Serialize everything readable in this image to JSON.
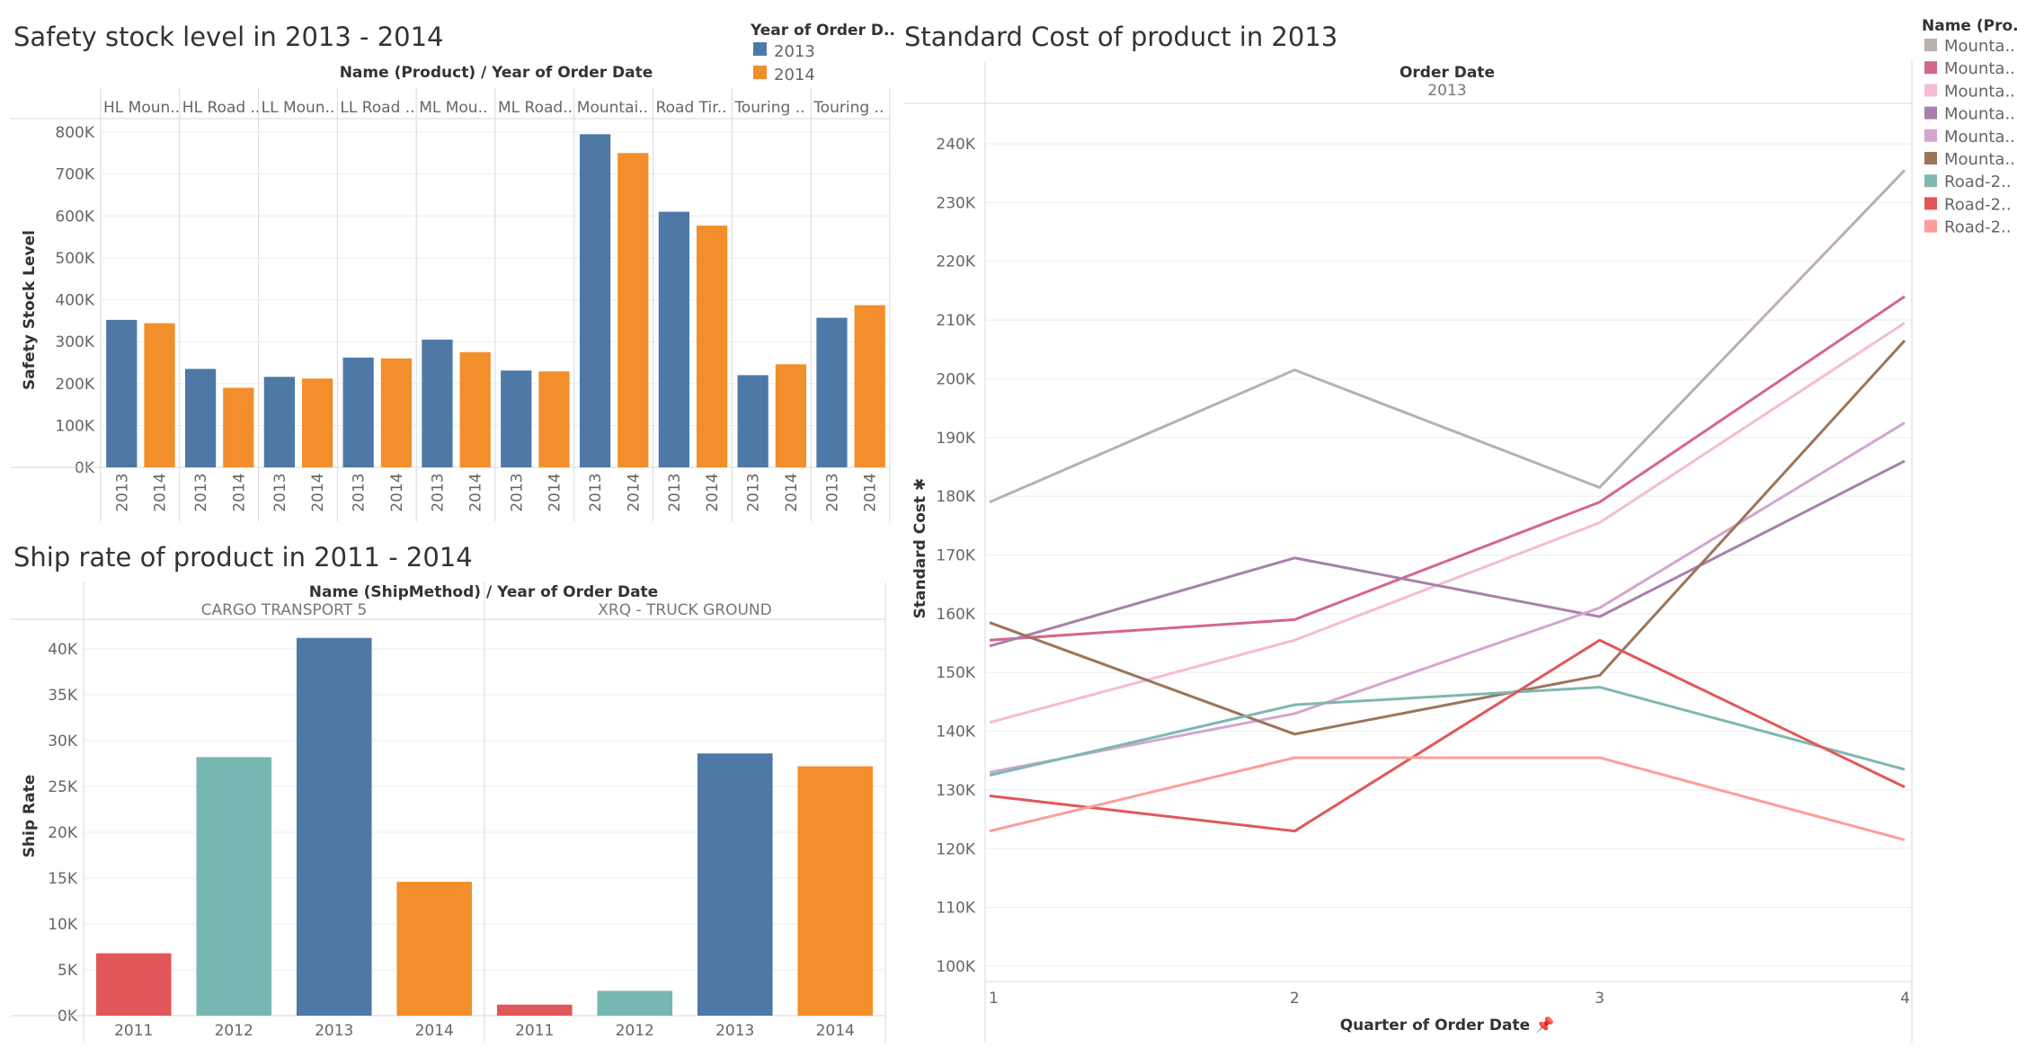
{
  "charts": [
    {
      "id": "safety",
      "title": "Safety stock level in 2013 - 2014",
      "header": "Name (Product)  /  Year of Order Date",
      "legend_title": "Year of Order D..",
      "ylabel": "Safety Stock Level",
      "y_ticks": [
        "800K",
        "700K",
        "600K",
        "500K",
        "400K",
        "300K",
        "200K",
        "100K",
        "0K"
      ],
      "legend": [
        {
          "label": "2013",
          "color": "#4e79a7"
        },
        {
          "label": "2014",
          "color": "#f28e2b"
        }
      ]
    },
    {
      "id": "ship",
      "title": "Ship rate of product in 2011 - 2014",
      "header": "Name (ShipMethod)  /  Year of Order Date",
      "ylabel": "Ship Rate",
      "y_ticks": [
        "40K",
        "35K",
        "30K",
        "25K",
        "20K",
        "15K",
        "10K",
        "5K",
        "0K"
      ]
    },
    {
      "id": "cost",
      "title": "Standard Cost of product in 2013",
      "header": "Order Date",
      "subheader": "2013",
      "ylabel": "Standard Cost ✱",
      "xlabel": "Quarter of Order Date 📌",
      "legend_title": "Name (Pro..",
      "y_ticks": [
        "240K",
        "230K",
        "220K",
        "210K",
        "200K",
        "190K",
        "180K",
        "170K",
        "160K",
        "150K",
        "140K",
        "130K",
        "120K",
        "110K",
        "100K"
      ],
      "x_ticks": [
        "1",
        "2",
        "3",
        "4"
      ]
    }
  ],
  "chart_data": [
    {
      "type": "bar",
      "title": "Safety stock level in 2013 - 2014",
      "ylabel": "Safety Stock Level",
      "ylim": [
        0,
        830000
      ],
      "categories": [
        "HL Moun..",
        "HL Road ..",
        "LL Moun..",
        "LL Road ..",
        "ML Mou..",
        "ML Road..",
        "Mountai..",
        "Road Tir..",
        "Touring ..",
        "Touring .."
      ],
      "series": [
        {
          "name": "2013",
          "color": "#4e79a7",
          "values": [
            352000,
            235000,
            216000,
            262000,
            305000,
            231000,
            795000,
            610000,
            220000,
            357000
          ]
        },
        {
          "name": "2014",
          "color": "#f28e2b",
          "values": [
            344000,
            190000,
            212000,
            260000,
            275000,
            229000,
            750000,
            577000,
            246000,
            387000
          ]
        }
      ],
      "legend_position": "top-right"
    },
    {
      "type": "bar",
      "title": "Ship rate of product in 2011 - 2014",
      "ylabel": "Ship Rate",
      "ylim": [
        0,
        42500
      ],
      "groups": [
        {
          "name": "CARGO TRANSPORT 5",
          "categories": [
            "2011",
            "2012",
            "2013",
            "2014"
          ],
          "values": [
            6800,
            28200,
            41200,
            14600
          ],
          "colors": [
            "#e15759",
            "#76b7b2",
            "#4e79a7",
            "#f28e2b"
          ]
        },
        {
          "name": "XRQ - TRUCK GROUND",
          "categories": [
            "2011",
            "2012",
            "2013",
            "2014"
          ],
          "values": [
            1200,
            2700,
            28600,
            27200
          ],
          "colors": [
            "#e15759",
            "#76b7b2",
            "#4e79a7",
            "#f28e2b"
          ]
        }
      ]
    },
    {
      "type": "line",
      "title": "Standard Cost of product in 2013",
      "xlabel": "Quarter of Order Date",
      "ylabel": "Standard Cost",
      "x": [
        1,
        2,
        3,
        4
      ],
      "ylim": [
        97000,
        248000
      ],
      "series": [
        {
          "name": "Mounta..",
          "color": "#bab0ac",
          "values": [
            179000,
            201500,
            181500,
            235500
          ]
        },
        {
          "name": "Mounta..",
          "color": "#d4668c",
          "values": [
            155500,
            159000,
            179000,
            214000
          ]
        },
        {
          "name": "Mounta..",
          "color": "#f5bbd6",
          "values": [
            141500,
            155500,
            175500,
            209500
          ]
        },
        {
          "name": "Mounta..",
          "color": "#a97fad",
          "values": [
            154500,
            169500,
            159500,
            186000
          ]
        },
        {
          "name": "Mounta..",
          "color": "#d3a5d1",
          "values": [
            133000,
            143000,
            161000,
            192500
          ]
        },
        {
          "name": "Mounta..",
          "color": "#9c7559",
          "values": [
            158500,
            139500,
            149500,
            206500
          ]
        },
        {
          "name": "Road-2..",
          "color": "#7fb7b1",
          "values": [
            132500,
            144500,
            147500,
            133500
          ]
        },
        {
          "name": "Road-2..",
          "color": "#e15759",
          "values": [
            129000,
            123000,
            155500,
            130500
          ]
        },
        {
          "name": "Road-2..",
          "color": "#ff9d9a",
          "values": [
            123000,
            135500,
            135500,
            121500
          ]
        }
      ],
      "legend_position": "right"
    }
  ]
}
